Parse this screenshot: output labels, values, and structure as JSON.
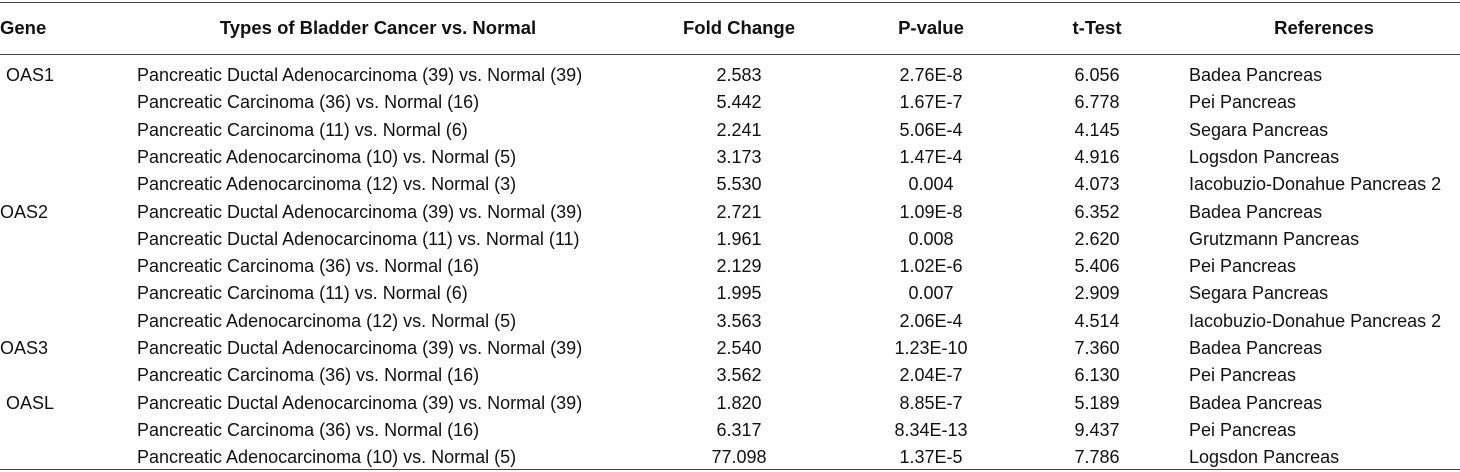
{
  "headers": {
    "gene": "Gene",
    "types": "Types of Bladder Cancer vs. Normal",
    "fold": "Fold Change",
    "pvalue": "P-value",
    "ttest": "t-Test",
    "refs": "References"
  },
  "rows": [
    {
      "gene": "OAS1",
      "type": "Pancreatic Ductal Adenocarcinoma (39) vs. Normal (39)",
      "fold": "2.583",
      "pvalue": "2.76E-8",
      "ttest": "6.056",
      "ref": "Badea Pancreas"
    },
    {
      "gene": "",
      "type": "Pancreatic Carcinoma (36) vs. Normal (16)",
      "fold": "5.442",
      "pvalue": "1.67E-7",
      "ttest": "6.778",
      "ref": "Pei Pancreas"
    },
    {
      "gene": "",
      "type": "Pancreatic Carcinoma (11) vs. Normal (6)",
      "fold": "2.241",
      "pvalue": "5.06E-4",
      "ttest": "4.145",
      "ref": "Segara Pancreas"
    },
    {
      "gene": "",
      "type": "Pancreatic Adenocarcinoma (10) vs. Normal (5)",
      "fold": "3.173",
      "pvalue": "1.47E-4",
      "ttest": "4.916",
      "ref": "Logsdon Pancreas"
    },
    {
      "gene": "",
      "type": "Pancreatic Adenocarcinoma (12) vs. Normal (3)",
      "fold": "5.530",
      "pvalue": "0.004",
      "ttest": "4.073",
      "ref": "Iacobuzio-Donahue Pancreas 2"
    },
    {
      "gene": "OAS2",
      "type": "Pancreatic Ductal Adenocarcinoma (39) vs. Normal (39)",
      "fold": "2.721",
      "pvalue": "1.09E-8",
      "ttest": "6.352",
      "ref": "Badea Pancreas"
    },
    {
      "gene": "",
      "type": "Pancreatic Ductal Adenocarcinoma (11) vs. Normal (11)",
      "fold": "1.961",
      "pvalue": "0.008",
      "ttest": "2.620",
      "ref": "Grutzmann Pancreas"
    },
    {
      "gene": "",
      "type": "Pancreatic Carcinoma (36) vs. Normal (16)",
      "fold": "2.129",
      "pvalue": "1.02E-6",
      "ttest": "5.406",
      "ref": "Pei Pancreas"
    },
    {
      "gene": "",
      "type": "Pancreatic Carcinoma (11) vs. Normal (6)",
      "fold": "1.995",
      "pvalue": "0.007",
      "ttest": "2.909",
      "ref": "Segara Pancreas"
    },
    {
      "gene": "",
      "type": "Pancreatic Adenocarcinoma (12) vs. Normal (5)",
      "fold": "3.563",
      "pvalue": "2.06E-4",
      "ttest": "4.514",
      "ref": "Iacobuzio-Donahue Pancreas 2"
    },
    {
      "gene": "OAS3",
      "type": "Pancreatic Ductal Adenocarcinoma (39) vs. Normal (39)",
      "fold": "2.540",
      "pvalue": "1.23E-10",
      "ttest": "7.360",
      "ref": "Badea Pancreas"
    },
    {
      "gene": "",
      "type": "Pancreatic Carcinoma (36) vs. Normal (16)",
      "fold": "3.562",
      "pvalue": "2.04E-7",
      "ttest": "6.130",
      "ref": "Pei Pancreas"
    },
    {
      "gene": "OASL",
      "type": "Pancreatic Ductal Adenocarcinoma (39) vs. Normal (39)",
      "fold": "1.820",
      "pvalue": "8.85E-7",
      "ttest": "5.189",
      "ref": "Badea Pancreas"
    },
    {
      "gene": "",
      "type": "Pancreatic Carcinoma (36) vs. Normal (16)",
      "fold": "6.317",
      "pvalue": "8.34E-13",
      "ttest": "9.437",
      "ref": "Pei Pancreas"
    },
    {
      "gene": "",
      "type": "Pancreatic Adenocarcinoma (10) vs. Normal (5)",
      "fold": "77.098",
      "pvalue": "1.37E-5",
      "ttest": "7.786",
      "ref": "Logsdon Pancreas"
    }
  ]
}
